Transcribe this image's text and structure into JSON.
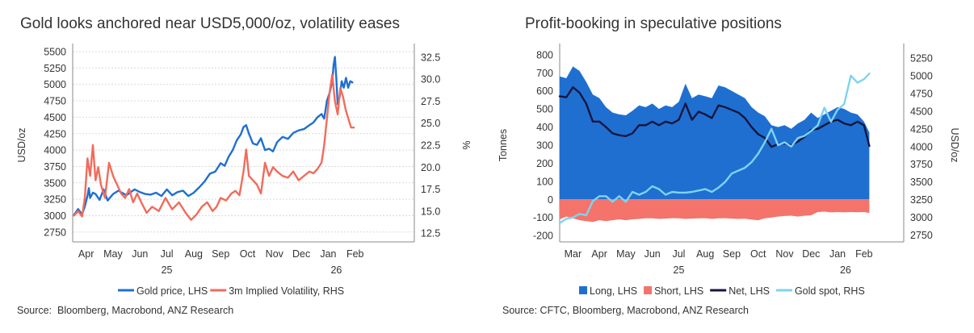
{
  "chart_data": [
    {
      "type": "line",
      "title": "Gold looks anchored near USD5,000/oz, volatility eases",
      "ylabel": "USD/oz",
      "y2label": "%",
      "ylim": [
        2600,
        5550
      ],
      "y2lim": [
        11.5,
        33.5
      ],
      "yticks": [
        2750,
        3000,
        3250,
        3500,
        3750,
        4000,
        4250,
        4500,
        4750,
        5000,
        5250,
        5500
      ],
      "y2ticks": [
        "12.5",
        "15.0",
        "17.5",
        "20.0",
        "22.5",
        "25.0",
        "27.5",
        "30.0",
        "32.5"
      ],
      "xlim": [
        0.5,
        13.2
      ],
      "xticks": [
        {
          "x": 1,
          "label": "Apr"
        },
        {
          "x": 2,
          "label": "May"
        },
        {
          "x": 3,
          "label": "Jun"
        },
        {
          "x": 4,
          "label": "Jul"
        },
        {
          "x": 5,
          "label": "Aug"
        },
        {
          "x": 6,
          "label": "Sep"
        },
        {
          "x": 7,
          "label": "Oct"
        },
        {
          "x": 8,
          "label": "Nov"
        },
        {
          "x": 9,
          "label": "Dec"
        },
        {
          "x": 10,
          "label": "Jan"
        },
        {
          "x": 11,
          "label": "Feb"
        }
      ],
      "year_labels": [
        {
          "x": 4,
          "label": "25"
        },
        {
          "x": 10.3,
          "label": "26"
        }
      ],
      "grid": true,
      "legend_position": "bottom",
      "source": "Source:  Bloomberg, Macrobond, ANZ Research",
      "series": [
        {
          "name": "Gold price, LHS",
          "axis": "left",
          "color": "#1f6fd1",
          "x": [
            0.55,
            0.7,
            0.85,
            0.95,
            1.05,
            1.1,
            1.15,
            1.25,
            1.35,
            1.5,
            1.65,
            1.8,
            2.0,
            2.2,
            2.5,
            2.8,
            3.0,
            3.2,
            3.4,
            3.6,
            3.8,
            4.0,
            4.2,
            4.4,
            4.6,
            4.8,
            5.0,
            5.2,
            5.4,
            5.6,
            5.8,
            6.0,
            6.15,
            6.3,
            6.45,
            6.6,
            6.75,
            6.85,
            6.95,
            7.05,
            7.2,
            7.35,
            7.5,
            7.65,
            7.8,
            7.95,
            8.1,
            8.3,
            8.5,
            8.7,
            8.9,
            9.1,
            9.3,
            9.45,
            9.6,
            9.75,
            9.85,
            9.95,
            10.05,
            10.15,
            10.2,
            10.25,
            10.3,
            10.35,
            10.42,
            10.5,
            10.58,
            10.66,
            10.74,
            10.82,
            10.9
          ],
          "y": [
            3010,
            3100,
            3020,
            3140,
            3300,
            3420,
            3270,
            3350,
            3330,
            3240,
            3400,
            3230,
            3330,
            3380,
            3310,
            3400,
            3360,
            3330,
            3320,
            3350,
            3300,
            3400,
            3310,
            3360,
            3380,
            3300,
            3350,
            3430,
            3520,
            3640,
            3670,
            3800,
            3760,
            3900,
            4000,
            4150,
            4240,
            4350,
            4380,
            4250,
            4100,
            4080,
            4180,
            4000,
            4020,
            3980,
            4120,
            4200,
            4170,
            4260,
            4300,
            4320,
            4380,
            4420,
            4500,
            4550,
            4480,
            4750,
            4870,
            5050,
            5300,
            5420,
            5100,
            4700,
            4800,
            5050,
            4950,
            5100,
            4950,
            5050,
            5030
          ]
        },
        {
          "name": "3m Implied Volatility, RHS",
          "axis": "right",
          "color": "#f26b5b",
          "x": [
            0.55,
            0.7,
            0.85,
            0.95,
            1.05,
            1.15,
            1.25,
            1.35,
            1.45,
            1.55,
            1.7,
            1.85,
            2.0,
            2.15,
            2.3,
            2.45,
            2.6,
            2.75,
            2.9,
            3.05,
            3.25,
            3.45,
            3.7,
            3.95,
            4.2,
            4.45,
            4.7,
            4.9,
            5.1,
            5.3,
            5.5,
            5.7,
            5.85,
            6.0,
            6.2,
            6.4,
            6.55,
            6.7,
            6.85,
            6.95,
            7.05,
            7.2,
            7.35,
            7.5,
            7.65,
            7.8,
            7.95,
            8.1,
            8.3,
            8.5,
            8.7,
            8.9,
            9.1,
            9.3,
            9.45,
            9.6,
            9.75,
            9.85,
            9.95,
            10.05,
            10.15,
            10.25,
            10.35,
            10.45,
            10.55,
            10.65,
            10.75,
            10.85,
            10.95
          ],
          "y": [
            14.5,
            15.0,
            14.4,
            16.5,
            21.0,
            19.0,
            22.5,
            18.5,
            20.0,
            18.0,
            16.5,
            20.5,
            19.0,
            18.0,
            17.0,
            16.5,
            17.5,
            16.0,
            17.0,
            16.0,
            14.8,
            15.5,
            15.0,
            16.5,
            15.2,
            16.0,
            14.8,
            14.0,
            14.6,
            15.5,
            16.0,
            15.0,
            15.5,
            16.5,
            16.2,
            17.0,
            17.3,
            16.8,
            19.5,
            22.0,
            19.0,
            18.5,
            18.0,
            17.0,
            20.5,
            19.0,
            20.0,
            19.5,
            19.0,
            18.8,
            19.5,
            18.5,
            19.0,
            19.5,
            19.3,
            19.8,
            20.5,
            22.5,
            25.5,
            28.5,
            30.5,
            27.5,
            26.0,
            29.0,
            28.0,
            26.5,
            25.5,
            24.5,
            24.5
          ]
        }
      ]
    },
    {
      "type": "area",
      "title": "Profit-booking in speculative positions",
      "ylabel": "Tonnes",
      "y2label": "USD/oz",
      "ylim": [
        -235,
        835
      ],
      "y2lim": [
        2655,
        5385
      ],
      "yticks": [
        -200,
        -100,
        0,
        100,
        200,
        300,
        400,
        500,
        600,
        700,
        800
      ],
      "y2ticks": [
        2750,
        3000,
        3250,
        3500,
        3750,
        4000,
        4250,
        4500,
        4750,
        5000,
        5250
      ],
      "xlim": [
        -0.5,
        12.5
      ],
      "xticks": [
        {
          "x": 0,
          "label": "Mar"
        },
        {
          "x": 1,
          "label": "Apr"
        },
        {
          "x": 2,
          "label": "May"
        },
        {
          "x": 3,
          "label": "Jun"
        },
        {
          "x": 4,
          "label": "Jul"
        },
        {
          "x": 5,
          "label": "Aug"
        },
        {
          "x": 6,
          "label": "Sep"
        },
        {
          "x": 7,
          "label": "Oct"
        },
        {
          "x": 8,
          "label": "Nov"
        },
        {
          "x": 9,
          "label": "Dec"
        },
        {
          "x": 10,
          "label": "Jan"
        },
        {
          "x": 11,
          "label": "Feb"
        }
      ],
      "year_labels": [
        {
          "x": 4,
          "label": "25"
        },
        {
          "x": 10.3,
          "label": "26"
        }
      ],
      "grid": false,
      "legend_position": "bottom",
      "source": "Source: CFTC, Bloomberg, Macrobond, ANZ Research",
      "series": [
        {
          "name": "Long, LHS",
          "axis": "left",
          "kind": "area",
          "color": "#1f6fd1",
          "x": [
            -0.5,
            -0.25,
            0,
            0.25,
            0.5,
            0.75,
            1.0,
            1.25,
            1.5,
            1.75,
            2.0,
            2.25,
            2.5,
            2.75,
            3.0,
            3.25,
            3.5,
            3.75,
            4.0,
            4.25,
            4.5,
            4.75,
            5.0,
            5.25,
            5.5,
            5.75,
            6.0,
            6.25,
            6.5,
            6.75,
            7.0,
            7.25,
            7.5,
            7.75,
            8.0,
            8.25,
            8.5,
            8.75,
            9.0,
            9.25,
            9.5,
            9.75,
            10.0,
            10.25,
            10.5,
            10.75,
            11.0,
            11.2
          ],
          "y": [
            680,
            670,
            735,
            710,
            650,
            580,
            560,
            510,
            480,
            470,
            465,
            490,
            520,
            510,
            530,
            500,
            520,
            510,
            540,
            640,
            560,
            580,
            570,
            560,
            630,
            620,
            600,
            580,
            560,
            510,
            480,
            460,
            410,
            400,
            410,
            390,
            420,
            440,
            480,
            450,
            470,
            490,
            510,
            500,
            480,
            470,
            430,
            370
          ]
        },
        {
          "name": "Short, LHS",
          "axis": "left",
          "kind": "area",
          "color": "#f4736b",
          "x": [
            -0.5,
            -0.25,
            0,
            0.25,
            0.5,
            0.75,
            1.0,
            1.25,
            1.5,
            1.75,
            2.0,
            2.25,
            2.5,
            2.75,
            3.0,
            3.25,
            3.5,
            3.75,
            4.0,
            4.25,
            4.5,
            4.75,
            5.0,
            5.25,
            5.5,
            5.75,
            6.0,
            6.25,
            6.5,
            6.75,
            7.0,
            7.25,
            7.5,
            7.75,
            8.0,
            8.25,
            8.5,
            8.75,
            9.0,
            9.25,
            9.5,
            9.75,
            10.0,
            10.25,
            10.5,
            10.75,
            11.0,
            11.2
          ],
          "y": [
            -110,
            -95,
            -105,
            -115,
            -120,
            -125,
            -115,
            -120,
            -115,
            -110,
            -115,
            -110,
            -108,
            -105,
            -105,
            -108,
            -106,
            -104,
            -105,
            -108,
            -106,
            -105,
            -104,
            -108,
            -105,
            -104,
            -106,
            -108,
            -107,
            -112,
            -115,
            -105,
            -100,
            -95,
            -92,
            -90,
            -95,
            -90,
            -88,
            -70,
            -68,
            -72,
            -70,
            -72,
            -70,
            -71,
            -70,
            -75
          ]
        },
        {
          "name": "Net, LHS",
          "axis": "left",
          "kind": "line",
          "color": "#16163f",
          "x": [
            -0.5,
            -0.25,
            0,
            0.25,
            0.5,
            0.75,
            1.0,
            1.25,
            1.5,
            1.75,
            2.0,
            2.25,
            2.5,
            2.75,
            3.0,
            3.25,
            3.5,
            3.75,
            4.0,
            4.25,
            4.5,
            4.75,
            5.0,
            5.25,
            5.5,
            5.75,
            6.0,
            6.25,
            6.5,
            6.75,
            7.0,
            7.25,
            7.5,
            7.75,
            8.0,
            8.25,
            8.5,
            8.75,
            9.0,
            9.25,
            9.5,
            9.75,
            10.0,
            10.25,
            10.5,
            10.75,
            11.0,
            11.2
          ],
          "y": [
            570,
            565,
            620,
            590,
            530,
            430,
            430,
            400,
            365,
            355,
            350,
            365,
            410,
            410,
            430,
            410,
            430,
            420,
            440,
            530,
            440,
            485,
            470,
            450,
            520,
            510,
            495,
            480,
            450,
            400,
            360,
            340,
            290,
            305,
            310,
            300,
            320,
            345,
            385,
            390,
            410,
            430,
            440,
            420,
            410,
            430,
            410,
            295
          ]
        },
        {
          "name": "Gold spot, RHS",
          "axis": "right",
          "kind": "line",
          "color": "#7fd3f0",
          "x": [
            -0.5,
            -0.25,
            0,
            0.25,
            0.5,
            0.75,
            1.0,
            1.25,
            1.5,
            1.75,
            2.0,
            2.25,
            2.5,
            2.75,
            3.0,
            3.25,
            3.5,
            3.75,
            4.0,
            4.25,
            4.5,
            4.75,
            5.0,
            5.25,
            5.5,
            5.75,
            6.0,
            6.25,
            6.5,
            6.75,
            7.0,
            7.25,
            7.5,
            7.75,
            8.0,
            8.25,
            8.5,
            8.75,
            9.0,
            9.25,
            9.5,
            9.75,
            10.0,
            10.25,
            10.5,
            10.75,
            11.0,
            11.2
          ],
          "y": [
            2920,
            2980,
            3000,
            3050,
            3030,
            3230,
            3300,
            3300,
            3220,
            3300,
            3220,
            3360,
            3320,
            3360,
            3440,
            3400,
            3320,
            3360,
            3350,
            3350,
            3360,
            3380,
            3400,
            3360,
            3420,
            3500,
            3620,
            3660,
            3700,
            3780,
            3900,
            4060,
            4250,
            4020,
            4060,
            4000,
            4120,
            4150,
            4220,
            4300,
            4550,
            4350,
            4520,
            4600,
            5000,
            4900,
            4950,
            5030
          ]
        }
      ]
    }
  ]
}
